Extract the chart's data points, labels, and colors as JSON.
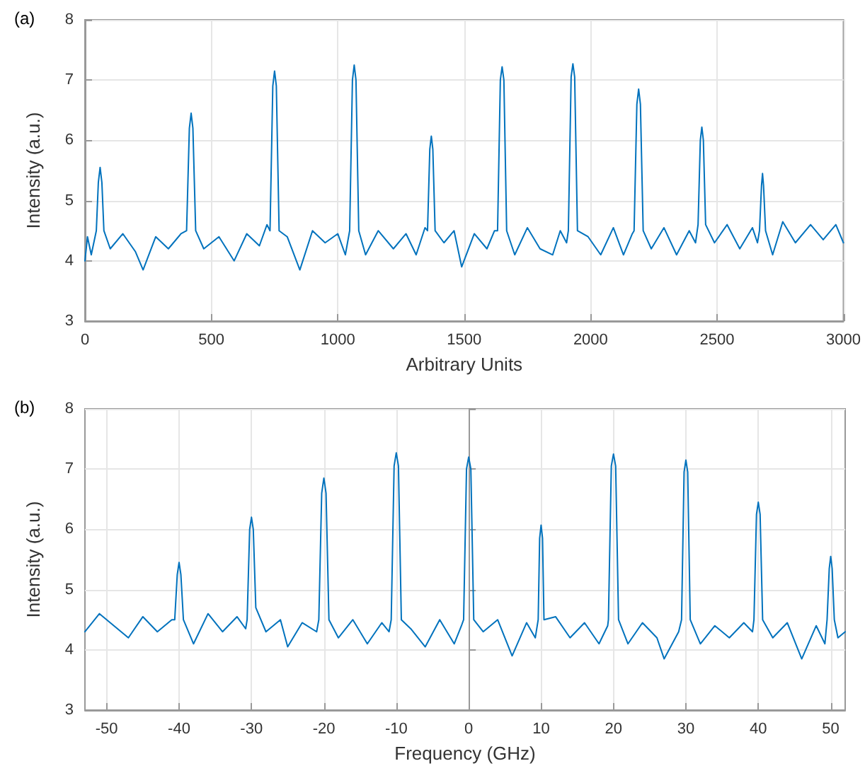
{
  "chart_data": [
    {
      "type": "line",
      "title": "(a)",
      "xlabel": "Arbitrary Units",
      "ylabel": "Intensity (a.u.)",
      "xlim": [
        0,
        3000
      ],
      "xticks": [
        0,
        500,
        1000,
        1500,
        2000,
        2500,
        3000
      ],
      "ylim": [
        3,
        8
      ],
      "yticks": [
        3,
        4,
        5,
        6,
        7,
        8
      ],
      "grid": true,
      "marker": "none",
      "line_style": "solid",
      "x": [
        0,
        10,
        25,
        40,
        45,
        53,
        60,
        67,
        75,
        100,
        150,
        200,
        230,
        280,
        330,
        380,
        402,
        413,
        420,
        427,
        438,
        470,
        530,
        590,
        640,
        690,
        720,
        732,
        743,
        750,
        757,
        768,
        800,
        850,
        900,
        950,
        1000,
        1030,
        1047,
        1058,
        1065,
        1072,
        1083,
        1110,
        1160,
        1220,
        1270,
        1310,
        1345,
        1355,
        1364,
        1370,
        1376,
        1385,
        1420,
        1460,
        1490,
        1540,
        1590,
        1620,
        1632,
        1643,
        1650,
        1657,
        1668,
        1700,
        1750,
        1800,
        1850,
        1880,
        1905,
        1912,
        1923,
        1930,
        1937,
        1948,
        1990,
        2040,
        2090,
        2130,
        2165,
        2172,
        2183,
        2190,
        2197,
        2208,
        2240,
        2290,
        2340,
        2390,
        2415,
        2425,
        2434,
        2440,
        2446,
        2455,
        2490,
        2540,
        2590,
        2640,
        2660,
        2668,
        2676,
        2680,
        2684,
        2692,
        2720,
        2760,
        2810,
        2870,
        2920,
        2970,
        3000
      ],
      "series": [
        {
          "color": "#0072bd",
          "values": [
            4.0,
            4.4,
            4.1,
            4.4,
            4.5,
            5.3,
            5.55,
            5.3,
            4.5,
            4.2,
            4.45,
            4.15,
            3.85,
            4.4,
            4.2,
            4.45,
            4.5,
            6.2,
            6.45,
            6.2,
            4.5,
            4.2,
            4.4,
            4.0,
            4.45,
            4.25,
            4.6,
            4.5,
            6.9,
            7.15,
            6.9,
            4.5,
            4.4,
            3.85,
            4.5,
            4.3,
            4.45,
            4.1,
            4.5,
            7.0,
            7.25,
            7.0,
            4.5,
            4.1,
            4.5,
            4.2,
            4.45,
            4.1,
            4.55,
            4.5,
            5.85,
            6.07,
            5.85,
            4.5,
            4.3,
            4.5,
            3.9,
            4.45,
            4.2,
            4.5,
            4.5,
            7.0,
            7.22,
            7.0,
            4.5,
            4.1,
            4.55,
            4.2,
            4.1,
            4.5,
            4.3,
            4.5,
            7.05,
            7.27,
            7.05,
            4.5,
            4.4,
            4.1,
            4.55,
            4.1,
            4.45,
            4.5,
            6.6,
            6.85,
            6.6,
            4.5,
            4.2,
            4.55,
            4.1,
            4.5,
            4.3,
            4.6,
            6.0,
            6.22,
            6.0,
            4.6,
            4.3,
            4.6,
            4.2,
            4.55,
            4.3,
            4.5,
            5.25,
            5.45,
            5.25,
            4.5,
            4.1,
            4.65,
            4.3,
            4.6,
            4.35,
            4.6,
            4.3
          ]
        }
      ]
    },
    {
      "type": "line",
      "title": "(b)",
      "xlabel": "Frequency (GHz)",
      "ylabel": "Intensity (a.u.)",
      "xlim": [
        -53,
        52
      ],
      "xticks": [
        -50,
        -40,
        -30,
        -20,
        -10,
        0,
        10,
        20,
        30,
        40,
        50
      ],
      "ylim": [
        3,
        8
      ],
      "yticks": [
        3,
        4,
        5,
        6,
        7,
        8
      ],
      "grid": true,
      "marker": "none",
      "line_style": "solid",
      "x": [
        -53,
        -51,
        -49,
        -47,
        -45,
        -43,
        -41,
        -40.6,
        -40.25,
        -40,
        -39.75,
        -39.4,
        -38,
        -36,
        -34,
        -32,
        -30.8,
        -30.6,
        -30.25,
        -30,
        -29.75,
        -29.4,
        -28,
        -26,
        -25,
        -23,
        -21,
        -20.7,
        -20.3,
        -20,
        -19.7,
        -19.3,
        -18,
        -16,
        -14,
        -12,
        -11,
        -10.7,
        -10.3,
        -10,
        -9.7,
        -9.3,
        -8,
        -6,
        -4,
        -2,
        -1,
        -0.7,
        -0.3,
        0,
        0.3,
        0.7,
        2,
        4,
        6,
        8,
        9.2,
        9.6,
        9.8,
        10,
        10.2,
        10.4,
        12,
        14,
        16,
        18,
        19.2,
        19.3,
        19.7,
        20,
        20.3,
        20.7,
        22,
        24,
        26,
        27,
        29,
        29.4,
        29.75,
        30,
        30.25,
        30.6,
        32,
        34,
        36,
        38,
        39.2,
        39.4,
        39.75,
        40,
        40.25,
        40.6,
        42,
        44,
        46,
        48,
        49.2,
        49.5,
        49.8,
        50,
        50.2,
        50.5,
        51,
        52
      ],
      "series": [
        {
          "color": "#0072bd",
          "values": [
            4.3,
            4.6,
            4.4,
            4.2,
            4.55,
            4.3,
            4.5,
            4.5,
            5.25,
            5.45,
            5.25,
            4.5,
            4.1,
            4.6,
            4.3,
            4.55,
            4.35,
            4.5,
            6.0,
            6.2,
            6.0,
            4.7,
            4.3,
            4.5,
            4.05,
            4.45,
            4.3,
            4.5,
            6.6,
            6.85,
            6.6,
            4.5,
            4.2,
            4.5,
            4.1,
            4.45,
            4.3,
            4.5,
            7.05,
            7.27,
            7.05,
            4.5,
            4.35,
            4.05,
            4.5,
            4.1,
            4.4,
            4.5,
            7.0,
            7.2,
            7.0,
            4.5,
            4.3,
            4.5,
            3.9,
            4.45,
            4.2,
            4.5,
            5.85,
            6.07,
            5.85,
            4.5,
            4.55,
            4.2,
            4.45,
            4.1,
            4.4,
            4.5,
            7.05,
            7.25,
            7.05,
            4.5,
            4.1,
            4.45,
            4.2,
            3.85,
            4.3,
            4.5,
            6.95,
            7.15,
            6.95,
            4.5,
            4.1,
            4.4,
            4.2,
            4.45,
            4.3,
            4.5,
            6.25,
            6.45,
            6.25,
            4.5,
            4.2,
            4.45,
            3.85,
            4.4,
            4.1,
            4.5,
            5.35,
            5.55,
            5.35,
            4.5,
            4.2,
            4.3
          ]
        }
      ]
    }
  ]
}
